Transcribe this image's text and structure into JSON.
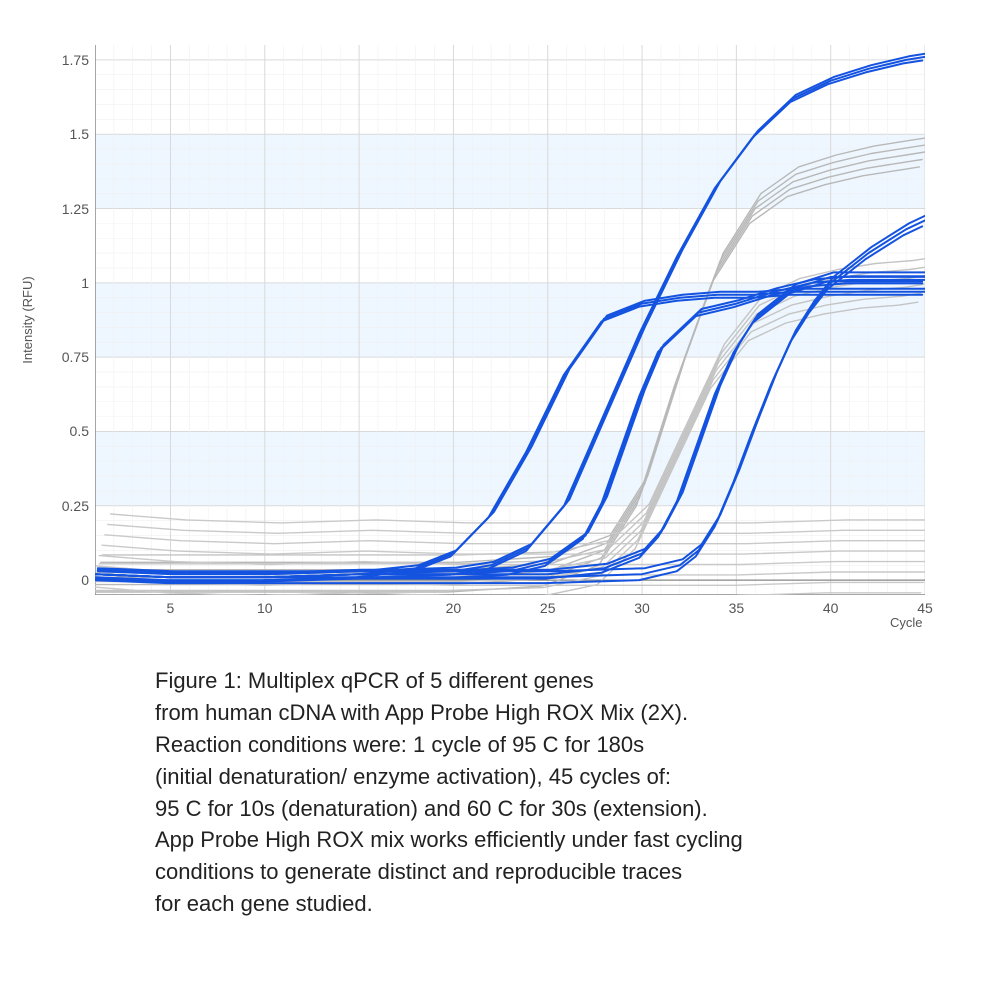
{
  "chart": {
    "type": "line",
    "ylabel": "Intensity (RFU)",
    "xlabel": "Cycle",
    "xlim": [
      1,
      45
    ],
    "ylim": [
      -0.05,
      1.8
    ],
    "yticks": [
      0,
      0.25,
      0.5,
      0.75,
      1,
      1.25,
      1.5,
      1.75
    ],
    "ytick_labels": [
      "0",
      "0.25",
      "0.5",
      "0.75",
      "1",
      "1.25",
      "1.5",
      "1.75"
    ],
    "xticks": [
      5,
      10,
      15,
      20,
      25,
      30,
      35,
      40,
      45
    ],
    "xtick_labels": [
      "5",
      "10",
      "15",
      "20",
      "25",
      "30",
      "35",
      "40",
      "45"
    ],
    "tick_fontsize": 14,
    "label_fontsize": 13,
    "background_colors": [
      "#ffffff",
      "#eef7ff"
    ],
    "grid_color": "#d9d9d9",
    "axis_color": "#888888",
    "line_width_primary": 2,
    "line_width_grey": 1.4,
    "curve_groups": [
      {
        "name": "gene1_triplicate",
        "color": "#1453e0",
        "replicates": 3,
        "jitter": 0.01,
        "base_x": [
          1,
          5,
          10,
          15,
          18,
          20,
          22,
          24,
          26,
          28,
          30,
          32,
          34,
          36,
          38,
          40,
          42,
          44,
          45
        ],
        "base_y": [
          0.02,
          0.01,
          0.01,
          0.02,
          0.04,
          0.09,
          0.22,
          0.44,
          0.7,
          0.88,
          0.93,
          0.95,
          0.96,
          0.96,
          0.97,
          0.97,
          0.97,
          0.97,
          0.97
        ]
      },
      {
        "name": "gene2_triplicate",
        "color": "#1453e0",
        "replicates": 3,
        "jitter": 0.012,
        "base_x": [
          1,
          5,
          10,
          15,
          20,
          22,
          24,
          26,
          28,
          30,
          32,
          34,
          36,
          38,
          40,
          42,
          44,
          45
        ],
        "base_y": [
          0.02,
          0.01,
          0.01,
          0.02,
          0.03,
          0.05,
          0.11,
          0.26,
          0.55,
          0.84,
          1.1,
          1.33,
          1.5,
          1.62,
          1.68,
          1.72,
          1.75,
          1.76
        ]
      },
      {
        "name": "gene3_triplicate",
        "color": "#1453e0",
        "replicates": 3,
        "jitter": 0.012,
        "base_x": [
          1,
          5,
          10,
          15,
          20,
          23,
          25,
          27,
          28,
          29,
          30,
          31,
          33,
          35,
          37,
          39,
          41,
          43,
          45
        ],
        "base_y": [
          0.02,
          0.01,
          0.01,
          0.02,
          0.02,
          0.03,
          0.06,
          0.15,
          0.27,
          0.45,
          0.63,
          0.78,
          0.9,
          0.93,
          0.97,
          1.0,
          1.01,
          1.01,
          1.01
        ]
      },
      {
        "name": "gene4_triplicate",
        "color": "#1453e0",
        "replicates": 3,
        "jitter": 0.015,
        "base_x": [
          1,
          5,
          10,
          15,
          20,
          25,
          28,
          30,
          31,
          32,
          33,
          34,
          35,
          36,
          38,
          40,
          42,
          44,
          45
        ],
        "base_y": [
          0.02,
          0.01,
          0.01,
          0.02,
          0.02,
          0.02,
          0.04,
          0.09,
          0.16,
          0.28,
          0.46,
          0.64,
          0.78,
          0.88,
          0.98,
          1.02,
          1.02,
          1.02,
          1.02
        ]
      },
      {
        "name": "gene5_triplicate",
        "color": "#1453e0",
        "replicates": 3,
        "jitter": 0.02,
        "base_x": [
          1,
          5,
          10,
          15,
          20,
          25,
          30,
          32,
          33,
          34,
          35,
          36,
          37,
          38,
          39,
          40,
          42,
          44,
          45
        ],
        "base_y": [
          0.02,
          0.01,
          0.01,
          0.01,
          0.01,
          0.01,
          0.02,
          0.05,
          0.1,
          0.2,
          0.35,
          0.52,
          0.68,
          0.82,
          0.92,
          1.0,
          1.1,
          1.18,
          1.21
        ]
      },
      {
        "name": "grey_high_plateau",
        "color": "#b8b8b8",
        "replicates": 5,
        "jitter": 0.025,
        "base_x": [
          1,
          5,
          10,
          15,
          20,
          25,
          28,
          30,
          32,
          34,
          36,
          38,
          40,
          42,
          44,
          45
        ],
        "base_y": [
          0.01,
          0.01,
          0.01,
          0.01,
          0.01,
          0.03,
          0.1,
          0.3,
          0.7,
          1.05,
          1.25,
          1.34,
          1.38,
          1.41,
          1.43,
          1.44
        ]
      },
      {
        "name": "grey_mid_plateau",
        "color": "#c4c4c4",
        "replicates": 6,
        "jitter": 0.03,
        "base_x": [
          1,
          5,
          10,
          15,
          20,
          25,
          28,
          30,
          32,
          34,
          36,
          38,
          40,
          42,
          44,
          45
        ],
        "base_y": [
          0.01,
          0.01,
          0.01,
          0.01,
          0.01,
          0.02,
          0.06,
          0.18,
          0.45,
          0.72,
          0.88,
          0.94,
          0.97,
          0.99,
          1.0,
          1.01
        ]
      },
      {
        "name": "grey_baseline_noise",
        "color": "#c9c9c9",
        "replicates": 12,
        "jitter": 0.035,
        "base_x": [
          1,
          5,
          10,
          15,
          20,
          25,
          30,
          35,
          40,
          45
        ],
        "base_y": [
          0.03,
          0.01,
          0.0,
          0.01,
          0.0,
          0.0,
          0.0,
          0.0,
          0.01,
          0.01
        ]
      }
    ]
  },
  "caption": {
    "lines": [
      "Figure 1: Multiplex qPCR of 5 different genes",
      "from human cDNA with App Probe High ROX Mix (2X).",
      "Reaction conditions were: 1 cycle of 95 C for 180s",
      "(initial denaturation/ enzyme activation), 45 cycles of:",
      "95 C for 10s (denaturation) and 60 C for 30s (extension).",
      "App Probe High ROX mix works efficiently under fast cycling",
      "conditions to generate distinct and reproducible traces",
      "for each gene studied."
    ],
    "fontsize": 22,
    "color": "#222222"
  }
}
